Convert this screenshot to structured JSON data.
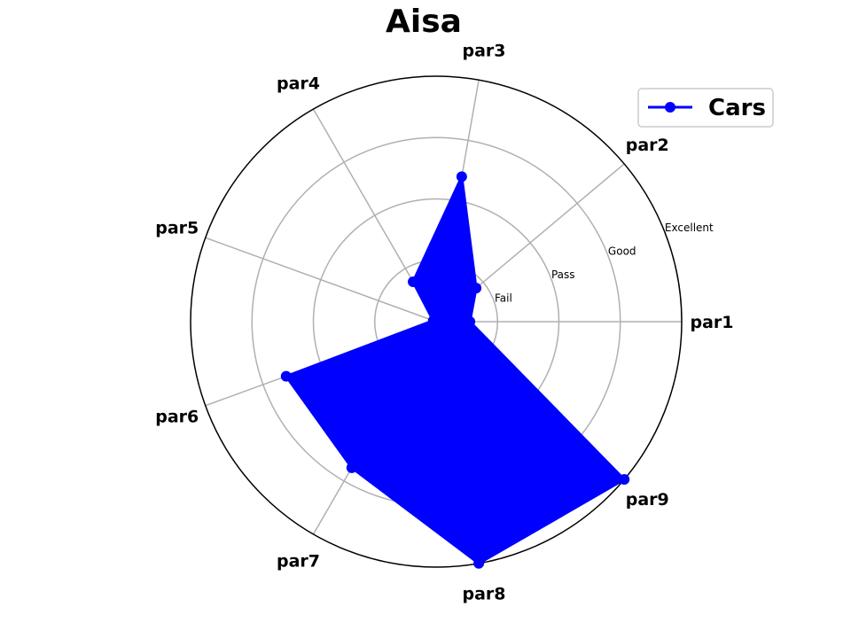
{
  "chart_data": {
    "type": "radar",
    "title": "Aisa",
    "axes": [
      "par1",
      "par2",
      "par3",
      "par4",
      "par5",
      "par6",
      "par7",
      "par8",
      "par9"
    ],
    "ring_labels": [
      "Fail",
      "Pass",
      "Good",
      "Excellent"
    ],
    "r_range": [
      0,
      4
    ],
    "grid": true,
    "legend_position": "top-right",
    "series": [
      {
        "name": "Cars",
        "values": [
          0.55,
          0.85,
          2.4,
          0.75,
          0.05,
          2.6,
          2.75,
          4.0,
          4.0
        ],
        "color": "#0000ff"
      }
    ]
  }
}
